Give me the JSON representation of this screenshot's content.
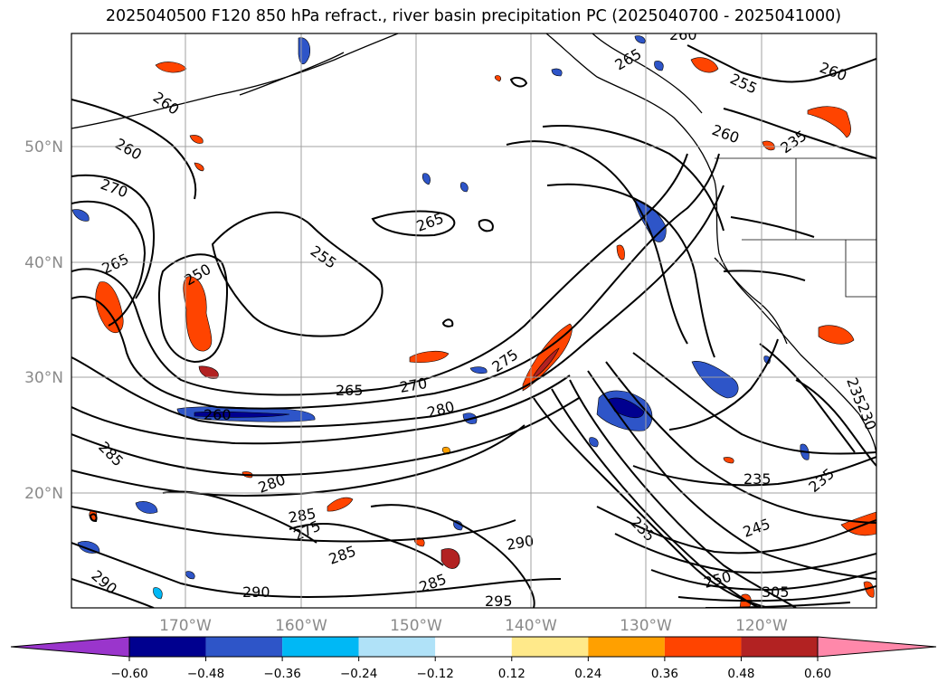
{
  "title": "2025040500 F120 850 hPa refract., river basin precipitation PC (2025040700 - 2025041000)",
  "latitude_labels": [
    "50°N",
    "40°N",
    "30°N",
    "20°N"
  ],
  "longitude_labels": [
    "170°W",
    "160°W",
    "150°W",
    "140°W",
    "130°W",
    "120°W"
  ],
  "contour_labels": [
    "260",
    "260",
    "260",
    "255",
    "260",
    "265",
    "270",
    "265",
    "250",
    "255",
    "265",
    "265",
    "270",
    "275",
    "280",
    "260",
    "285",
    "280",
    "285",
    "275",
    "285",
    "290",
    "290",
    "285",
    "290",
    "295",
    "235",
    "235",
    "245",
    "235",
    "250",
    "305",
    "235",
    "260",
    "230",
    "235"
  ],
  "colorbar": {
    "tick_labels": [
      "−0.60",
      "−0.48",
      "−0.36",
      "−0.24",
      "−0.12",
      "0.12",
      "0.24",
      "0.36",
      "0.48",
      "0.60"
    ],
    "colors": [
      "#9a35cc",
      "#00008f",
      "#2e55c8",
      "#00b8f5",
      "#b0e2f8",
      "#ffffff",
      "#ffe98a",
      "#ffa000",
      "#ff4400",
      "#b22222",
      "#ff88aa"
    ]
  },
  "colors": {
    "contour": "#000000",
    "grid": "#a0a0a0",
    "coast": "#000000"
  }
}
